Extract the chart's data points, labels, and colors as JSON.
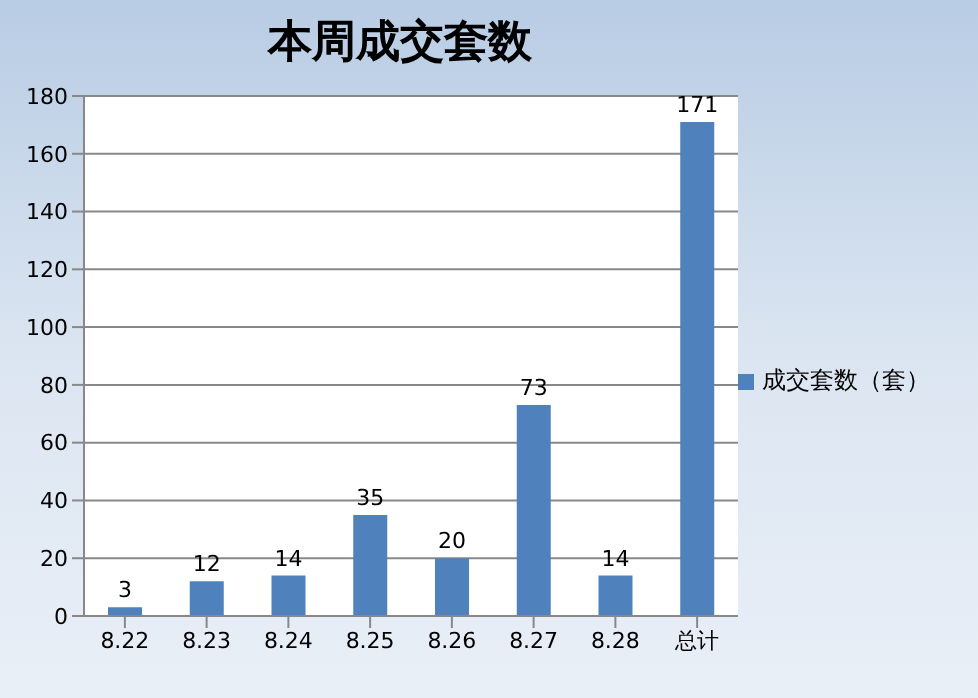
{
  "chart_data": {
    "type": "bar",
    "title": "本周成交套数",
    "categories": [
      "8.22",
      "8.23",
      "8.24",
      "8.25",
      "8.26",
      "8.27",
      "8.28",
      "总计"
    ],
    "series": [
      {
        "name": "成交套数（套）",
        "color": "#4f81bd",
        "values": [
          3,
          12,
          14,
          35,
          20,
          73,
          14,
          171
        ]
      }
    ],
    "ylim": [
      0,
      180
    ],
    "yticks": [
      0,
      20,
      40,
      60,
      80,
      100,
      120,
      140,
      160,
      180
    ],
    "grid": "y",
    "legend": "right",
    "data_labels": true
  }
}
